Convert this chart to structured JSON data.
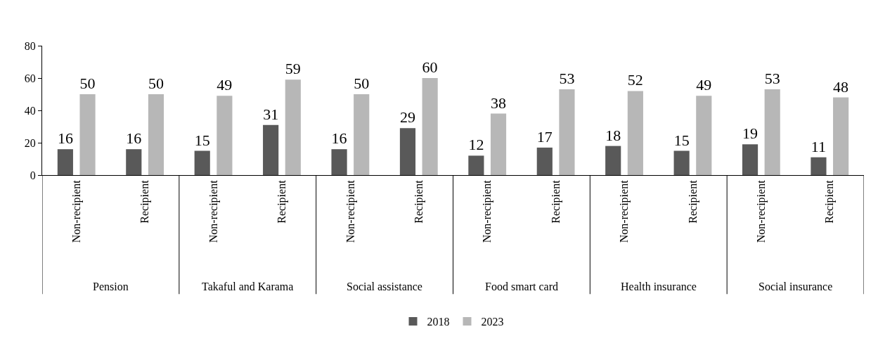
{
  "chart_data": {
    "type": "bar",
    "categories": [
      "Non-recipient",
      "Recipient",
      "Non-recipient",
      "Recipient",
      "Non-recipient",
      "Recipient",
      "Non-recipient",
      "Recipient",
      "Non-recipient",
      "Recipient",
      "Non-recipient",
      "Recipient"
    ],
    "series": [
      {
        "name": "2018",
        "color": "#595959",
        "values": [
          16,
          16,
          15,
          31,
          16,
          29,
          12,
          17,
          18,
          15,
          19,
          11
        ]
      },
      {
        "name": "2023",
        "color": "#b7b7b7",
        "values": [
          50,
          50,
          49,
          59,
          50,
          60,
          38,
          53,
          52,
          49,
          53,
          48
        ]
      }
    ],
    "annotations": [
      "Pension",
      "Takaful and Karama",
      "Social assistance",
      "Food smart card",
      "Health insurance",
      "Social insurance"
    ],
    "ylim": [
      0,
      80
    ],
    "yticks": [
      0,
      20,
      40,
      60,
      80
    ],
    "grid": false,
    "legend": "bottom",
    "data_labels": true
  }
}
